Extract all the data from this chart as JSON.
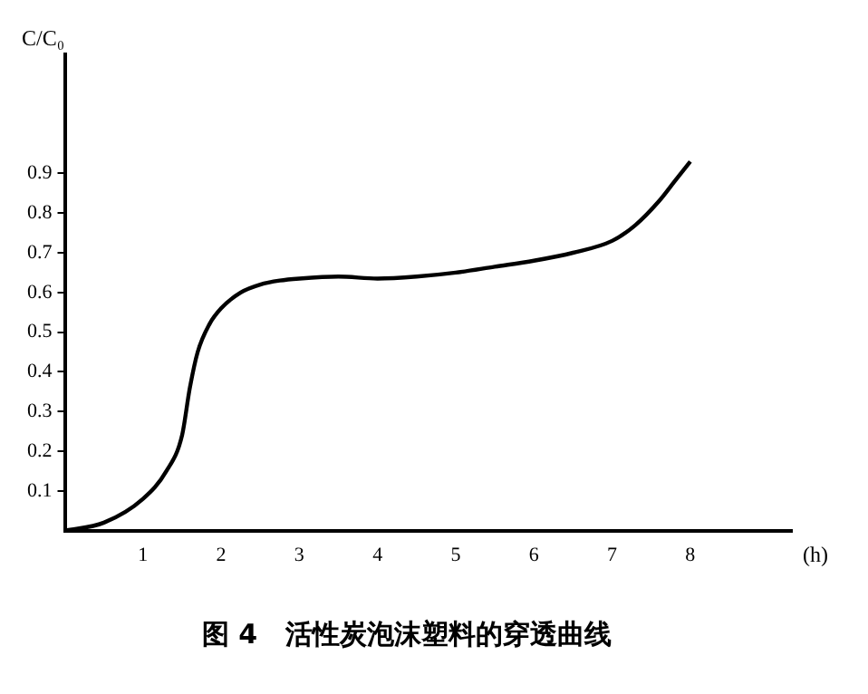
{
  "chart_data": {
    "type": "line",
    "title": "图 4   活性炭泡沫塑料的穿透曲线",
    "xlabel": "(h)",
    "ylabel": "C/C₀",
    "x": [
      0,
      0.5,
      1,
      1.3,
      1.5,
      1.6,
      1.7,
      1.85,
      2,
      2.25,
      2.5,
      2.75,
      3,
      3.5,
      4,
      4.5,
      5,
      5.5,
      6,
      6.5,
      7,
      7.3,
      7.6,
      7.8,
      8
    ],
    "series": [
      {
        "color": "#000000",
        "values": [
          0,
          0.02,
          0.08,
          0.15,
          0.24,
          0.36,
          0.45,
          0.52,
          0.56,
          0.6,
          0.62,
          0.63,
          0.635,
          0.64,
          0.635,
          0.64,
          0.65,
          0.665,
          0.68,
          0.7,
          0.73,
          0.77,
          0.83,
          0.88,
          0.93
        ]
      }
    ],
    "xlim": [
      0,
      9.3
    ],
    "xticks": [
      1,
      2,
      3,
      4,
      5,
      6,
      7,
      8
    ],
    "ylim": [
      0,
      1.2
    ],
    "yticks": [
      0.1,
      0.2,
      0.3,
      0.4,
      0.5,
      0.6,
      0.7,
      0.8,
      0.9
    ],
    "grid": false,
    "legend": false,
    "marker": "none",
    "line_style": "solid"
  }
}
